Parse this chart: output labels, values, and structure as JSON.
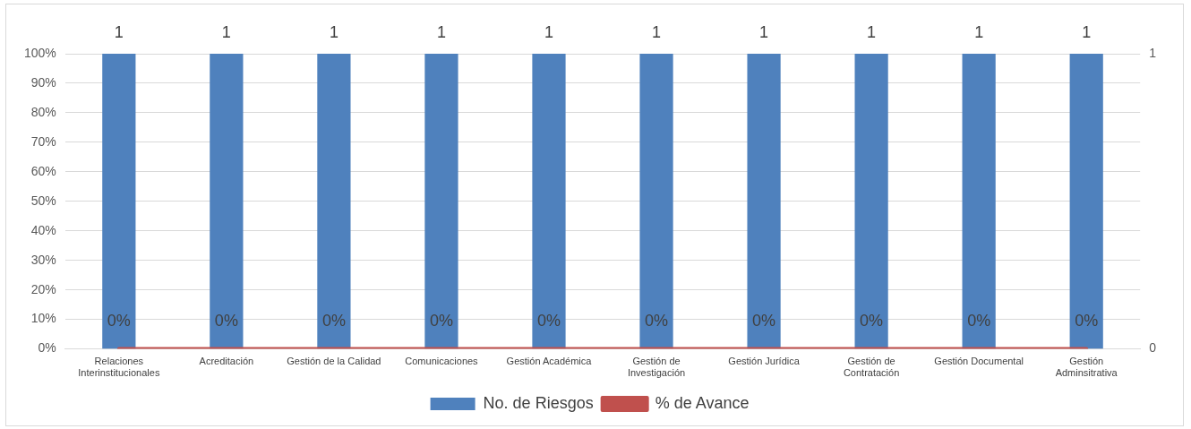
{
  "chart_data": {
    "type": "bar",
    "categories": [
      "Relaciones Interinstitucionales",
      "Acreditación",
      "Gestión de la Calidad",
      "Comunicaciones",
      "Gestión Académica",
      "Gestión de Investigación",
      "Gestión Jurídica",
      "Gestión de Contratación",
      "Gestión Documental",
      "Gestión Adminsitrativa"
    ],
    "series": [
      {
        "name": "No. de Riesgos",
        "axis": "y2",
        "color": "#4f81bd",
        "values": [
          1,
          1,
          1,
          1,
          1,
          1,
          1,
          1,
          1,
          1
        ],
        "value_labels": [
          "1",
          "1",
          "1",
          "1",
          "1",
          "1",
          "1",
          "1",
          "1",
          "1"
        ]
      },
      {
        "name": "% de Avance",
        "type": "line",
        "color": "#c0504d",
        "values": [
          0,
          0,
          0,
          0,
          0,
          0,
          0,
          0,
          0,
          0
        ],
        "value_labels": [
          "0%",
          "0%",
          "0%",
          "0%",
          "0%",
          "0%",
          "0%",
          "0%",
          "0%",
          "0%"
        ]
      }
    ],
    "ylim": [
      0,
      100
    ],
    "yticks": [
      {
        "value": 0,
        "label": "0%"
      },
      {
        "value": 10,
        "label": "10%"
      },
      {
        "value": 20,
        "label": "20%"
      },
      {
        "value": 30,
        "label": "30%"
      },
      {
        "value": 40,
        "label": "40%"
      },
      {
        "value": 50,
        "label": "50%"
      },
      {
        "value": 60,
        "label": "60%"
      },
      {
        "value": 70,
        "label": "70%"
      },
      {
        "value": 80,
        "label": "80%"
      },
      {
        "value": 90,
        "label": "90%"
      },
      {
        "value": 100,
        "label": "100%"
      }
    ],
    "y2lim": [
      0,
      1
    ],
    "y2ticks": [
      0,
      1
    ],
    "grid": "y",
    "legend": "bottom",
    "marker": "none"
  }
}
